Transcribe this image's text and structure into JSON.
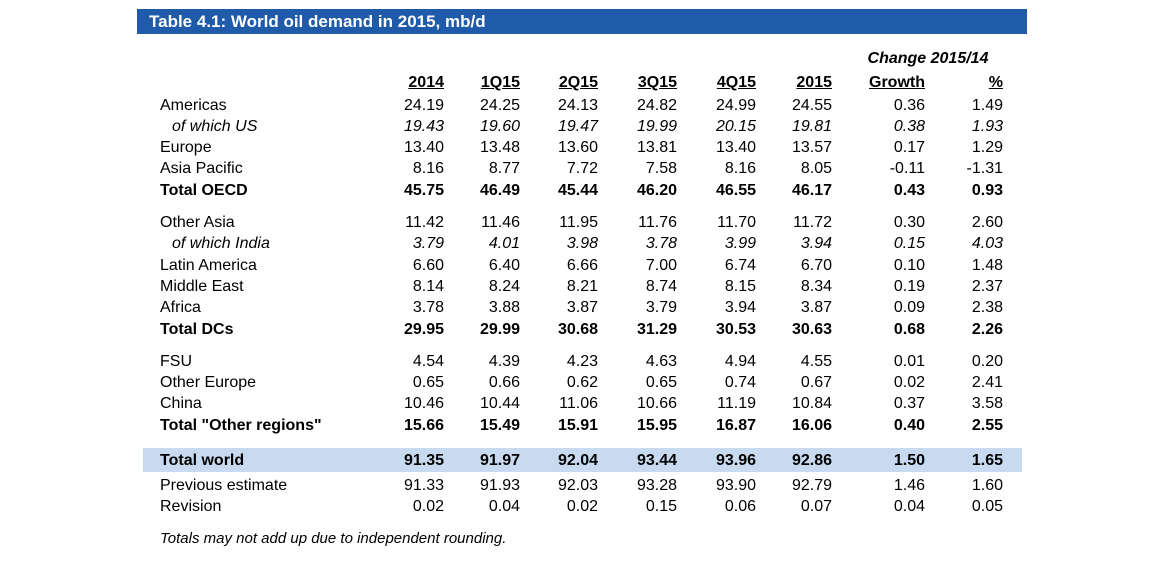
{
  "title": "Table 4.1: World oil demand in 2015, mb/d",
  "change_header": "Change 2015/14",
  "columns": [
    "2014",
    "1Q15",
    "2Q15",
    "3Q15",
    "4Q15",
    "2015",
    "Growth",
    "%"
  ],
  "rows": [
    {
      "label": "Americas",
      "values": [
        "24.19",
        "24.25",
        "24.13",
        "24.82",
        "24.99",
        "24.55",
        "0.36",
        "1.49"
      ]
    },
    {
      "label": "of which US",
      "values": [
        "19.43",
        "19.60",
        "19.47",
        "19.99",
        "20.15",
        "19.81",
        "0.38",
        "1.93"
      ]
    },
    {
      "label": "Europe",
      "values": [
        "13.40",
        "13.48",
        "13.60",
        "13.81",
        "13.40",
        "13.57",
        "0.17",
        "1.29"
      ]
    },
    {
      "label": "Asia Pacific",
      "values": [
        "8.16",
        "8.77",
        "7.72",
        "7.58",
        "8.16",
        "8.05",
        "-0.11",
        "-1.31"
      ]
    },
    {
      "label": "Total OECD",
      "values": [
        "45.75",
        "46.49",
        "45.44",
        "46.20",
        "46.55",
        "46.17",
        "0.43",
        "0.93"
      ]
    },
    {
      "label": "Other Asia",
      "values": [
        "11.42",
        "11.46",
        "11.95",
        "11.76",
        "11.70",
        "11.72",
        "0.30",
        "2.60"
      ]
    },
    {
      "label": "of which India",
      "values": [
        "3.79",
        "4.01",
        "3.98",
        "3.78",
        "3.99",
        "3.94",
        "0.15",
        "4.03"
      ]
    },
    {
      "label": "Latin America",
      "values": [
        "6.60",
        "6.40",
        "6.66",
        "7.00",
        "6.74",
        "6.70",
        "0.10",
        "1.48"
      ]
    },
    {
      "label": "Middle East",
      "values": [
        "8.14",
        "8.24",
        "8.21",
        "8.74",
        "8.15",
        "8.34",
        "0.19",
        "2.37"
      ]
    },
    {
      "label": "Africa",
      "values": [
        "3.78",
        "3.88",
        "3.87",
        "3.79",
        "3.94",
        "3.87",
        "0.09",
        "2.38"
      ]
    },
    {
      "label": "Total DCs",
      "values": [
        "29.95",
        "29.99",
        "30.68",
        "31.29",
        "30.53",
        "30.63",
        "0.68",
        "2.26"
      ]
    },
    {
      "label": "FSU",
      "values": [
        "4.54",
        "4.39",
        "4.23",
        "4.63",
        "4.94",
        "4.55",
        "0.01",
        "0.20"
      ]
    },
    {
      "label": "Other Europe",
      "values": [
        "0.65",
        "0.66",
        "0.62",
        "0.65",
        "0.74",
        "0.67",
        "0.02",
        "2.41"
      ]
    },
    {
      "label": "China",
      "values": [
        "10.46",
        "10.44",
        "11.06",
        "10.66",
        "11.19",
        "10.84",
        "0.37",
        "3.58"
      ]
    },
    {
      "label": "Total \"Other regions\"",
      "values": [
        "15.66",
        "15.49",
        "15.91",
        "15.95",
        "16.87",
        "16.06",
        "0.40",
        "2.55"
      ]
    },
    {
      "label": "Total world",
      "values": [
        "91.35",
        "91.97",
        "92.04",
        "93.44",
        "93.96",
        "92.86",
        "1.50",
        "1.65"
      ]
    },
    {
      "label": "Previous estimate",
      "values": [
        "91.33",
        "91.93",
        "92.03",
        "93.28",
        "93.90",
        "92.79",
        "1.46",
        "1.60"
      ]
    },
    {
      "label": "Revision",
      "values": [
        "0.02",
        "0.04",
        "0.02",
        "0.15",
        "0.06",
        "0.07",
        "0.04",
        "0.05"
      ]
    }
  ],
  "note": "Totals may not add up due to independent rounding.",
  "colors": {
    "title_bg": "#1f5ba9",
    "highlight": "#c8daf0"
  }
}
